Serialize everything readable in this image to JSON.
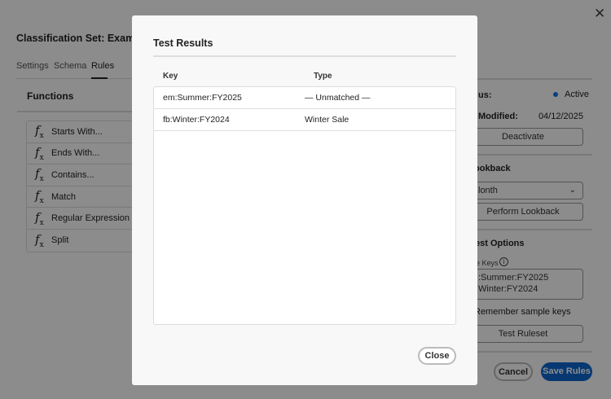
{
  "page": {
    "title": "Classification Set: Example Cla",
    "close_icon": "close-icon",
    "tabs": [
      {
        "label": "Settings"
      },
      {
        "label": "Schema"
      },
      {
        "label": "Rules",
        "active": true
      }
    ],
    "functions": {
      "heading": "Functions",
      "items": [
        {
          "label": "Starts With..."
        },
        {
          "label": "Ends With..."
        },
        {
          "label": "Contains..."
        },
        {
          "label": "Match"
        },
        {
          "label": "Regular Expression"
        },
        {
          "label": "Split"
        }
      ]
    },
    "side": {
      "status_label": "us:",
      "status_value": "Active",
      "status_color": "#1473e6",
      "modified_label": "Modified:",
      "modified_value": "04/12/2025",
      "deactivate": "Deactivate",
      "lookback_heading": "ookback",
      "lookback_select": "lonth",
      "perform_lookback": "Perform Lookback",
      "test_heading": "est Options",
      "keys_label": "le Keys",
      "keys_lines": [
        ":Summer:FY2025",
        "Winter:FY2024"
      ],
      "remember": "Remember sample keys",
      "test_ruleset": "Test Ruleset"
    },
    "footer": {
      "cancel": "Cancel",
      "save": "Save Rules",
      "save_color": "#0d66d0"
    }
  },
  "modal": {
    "title": "Test Results",
    "columns": [
      "Key",
      "Type"
    ],
    "rows": [
      {
        "key": "em:Summer:FY2025",
        "type": "— Unmatched —"
      },
      {
        "key": "fb:Winter:FY2024",
        "type": "Winter Sale"
      }
    ],
    "close": "Close"
  }
}
